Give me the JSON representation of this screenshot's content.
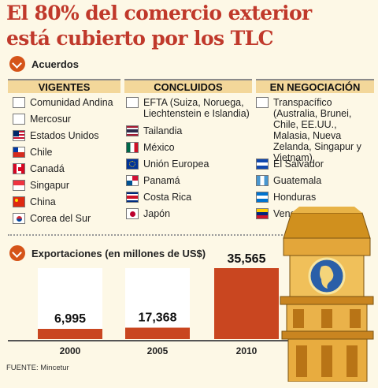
{
  "title_line1": "El 80% del comercio exterior",
  "title_line2": "está cubierto por los TLC",
  "acuerdos": {
    "label": "Acuerdos",
    "columns": [
      {
        "header": "VIGENTES",
        "items": [
          {
            "name": "Comunidad Andina",
            "flag": "blank"
          },
          {
            "name": "Mercosur",
            "flag": "blank"
          },
          {
            "name": "Estados Unidos",
            "flag": "usa"
          },
          {
            "name": "Chile",
            "flag": "chile"
          },
          {
            "name": "Canadá",
            "flag": "canada"
          },
          {
            "name": "Singapur",
            "flag": "singapore"
          },
          {
            "name": "China",
            "flag": "china"
          },
          {
            "name": "Corea del Sur",
            "flag": "korea"
          }
        ]
      },
      {
        "header": "CONCLUIDOS",
        "items": [
          {
            "name": "EFTA (Suiza, Noruega, Liechtenstein e Islandia)",
            "flag": "blank"
          },
          {
            "name": "Tailandia",
            "flag": "thailand"
          },
          {
            "name": "México",
            "flag": "mexico"
          },
          {
            "name": "Unión Europea",
            "flag": "eu"
          },
          {
            "name": "Panamá",
            "flag": "panama"
          },
          {
            "name": "Costa Rica",
            "flag": "costa-rica"
          },
          {
            "name": "Japón",
            "flag": "japan"
          }
        ]
      },
      {
        "header": "EN NEGOCIACIÓN",
        "items": [
          {
            "name": "Transpacífico (Australia, Brunei, Chile, EE.UU., Malasia, Nueva Zelanda, Singapur y Vietnam)",
            "flag": "blank"
          },
          {
            "name": "El Salvador",
            "flag": "el-salvador"
          },
          {
            "name": "Guatemala",
            "flag": "guatemala"
          },
          {
            "name": "Honduras",
            "flag": "honduras"
          },
          {
            "name": "Venezuela",
            "flag": "venezuela"
          }
        ]
      }
    ]
  },
  "exportaciones_label": "Exportaciones (en millones de US$)",
  "chart_data": {
    "type": "bar",
    "categories": [
      "2000",
      "2005",
      "2010"
    ],
    "values": [
      6995,
      17368,
      35565
    ],
    "value_labels": [
      "6,995",
      "17,368",
      "35,565"
    ],
    "title": "Exportaciones (en millones de US$)",
    "ylim": [
      0,
      35565
    ],
    "colors": {
      "bar": "#c94620",
      "track": "#ffffff"
    }
  },
  "source": "FUENTE: Mincetur",
  "colors": {
    "title": "#c0392b",
    "accent": "#d55419",
    "header_bg": "#f3d79a",
    "background": "#fdf8e6"
  }
}
